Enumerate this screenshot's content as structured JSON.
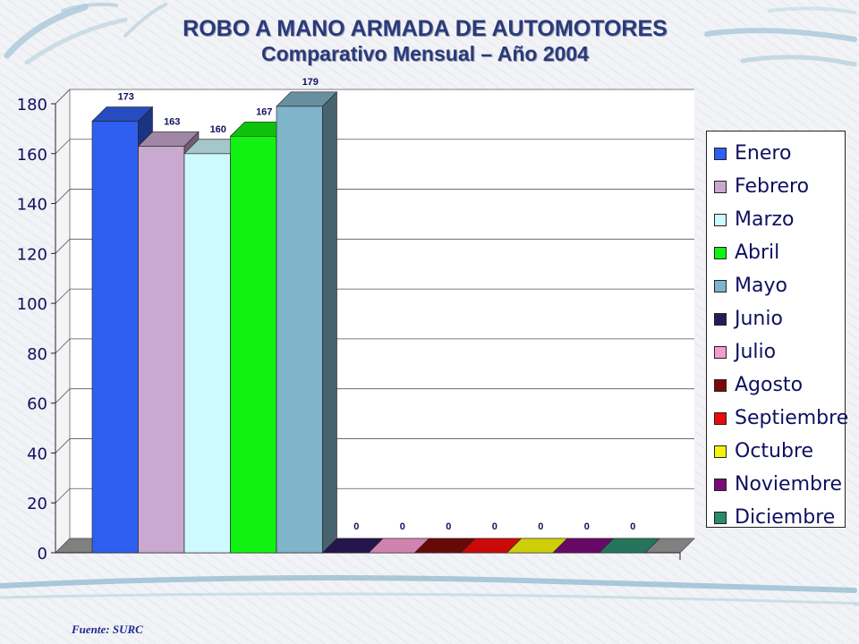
{
  "slide": {
    "title_line1": "ROBO A MANO ARMADA DE AUTOMOTORES",
    "title_line2": "Comparativo Mensual – Año 2004",
    "source": "Fuente: SURC"
  },
  "colors": {
    "title": "#2a3a7a",
    "text": "#101060"
  },
  "chart_data": {
    "type": "bar",
    "style": "3d-columns",
    "categories": [
      "Enero",
      "Febrero",
      "Marzo",
      "Abril",
      "Mayo",
      "Junio",
      "Julio",
      "Agosto",
      "Septiembre",
      "Octubre",
      "Noviembre",
      "Diciembre"
    ],
    "values": [
      173,
      163,
      160,
      167,
      179,
      0,
      0,
      0,
      0,
      0,
      0,
      0
    ],
    "data_labels": [
      "173",
      "163",
      "160",
      "167",
      "179",
      "0",
      "0",
      "0",
      "0",
      "0",
      "0",
      "0"
    ],
    "colors": [
      "#2f5ff0",
      "#c9a9cf",
      "#cdf9ff",
      "#12f212",
      "#80b4c8",
      "#2a1a5a",
      "#f59bcc",
      "#7a0a0a",
      "#ee0a0a",
      "#f2f20a",
      "#7a0a7a",
      "#2a8a6a"
    ],
    "ylim": [
      0,
      180
    ],
    "yticks": [
      0,
      20,
      40,
      60,
      80,
      100,
      120,
      140,
      160,
      180
    ],
    "grid": true,
    "legend_position": "right",
    "title": "",
    "xlabel": "",
    "ylabel": ""
  }
}
